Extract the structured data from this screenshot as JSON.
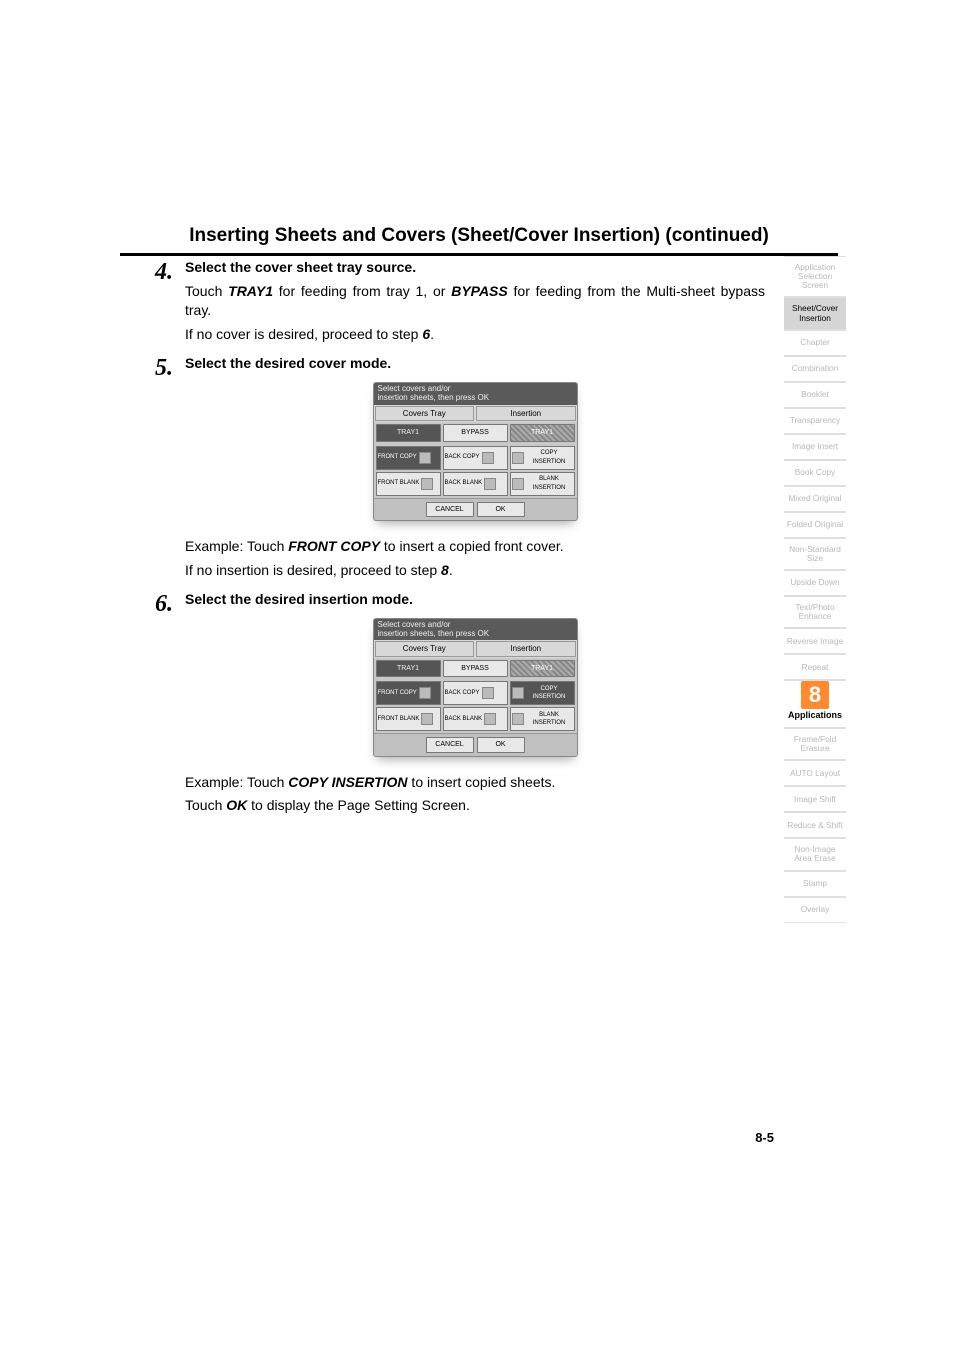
{
  "page_title": "Inserting Sheets and Covers (Sheet/Cover Insertion) (continued)",
  "steps": {
    "s4": {
      "num": "4.",
      "heading": "Select the cover sheet tray source.",
      "line1_a": "Touch ",
      "line1_b": "TRAY1",
      "line1_c": " for feeding from tray 1, or ",
      "line1_d": "BYPASS",
      "line1_e": " for feeding from the Multi-sheet bypass tray.",
      "line2_a": "If no cover is desired, proceed to step ",
      "line2_b": "6",
      "line2_c": "."
    },
    "s5": {
      "num": "5.",
      "heading": "Select the desired cover mode.",
      "ex_a": "Example: Touch ",
      "ex_b": "FRONT COPY",
      "ex_c": " to insert a copied front cover.",
      "after_a": "If no insertion is desired, proceed to step ",
      "after_b": "8",
      "after_c": "."
    },
    "s6": {
      "num": "6.",
      "heading": "Select the desired insertion mode.",
      "ex_a": "Example: Touch ",
      "ex_b": "COPY INSERTION",
      "ex_c": " to insert copied sheets.",
      "after_a": "Touch ",
      "after_b": "OK",
      "after_c": " to display the Page Setting Screen."
    }
  },
  "mock": {
    "head_line1": "Select covers and/or",
    "head_line2": "insertion sheets, then press OK",
    "sect_left": "Covers Tray",
    "sect_right": "Insertion",
    "top_tray1": "TRAY1",
    "top_bypass": "BYPASS",
    "top_tray1_right": "TRAY1",
    "front_copy": "FRONT COPY",
    "back_copy": "BACK COPY",
    "copy_ins": "COPY INSERTION",
    "front_blank": "FRONT BLANK",
    "back_blank": "BACK BLANK",
    "blank_ins": "BLANK INSERTION",
    "cancel": "CANCEL",
    "ok": "OK"
  },
  "sidebar": [
    {
      "label": "Application Selection Screen",
      "active": false
    },
    {
      "label": "Sheet/Cover Insertion",
      "active": true
    },
    {
      "label": "Chapter",
      "active": false
    },
    {
      "label": "Combination",
      "active": false
    },
    {
      "label": "Booklet",
      "active": false
    },
    {
      "label": "Transparency",
      "active": false
    },
    {
      "label": "Image Insert",
      "active": false
    },
    {
      "label": "Book Copy",
      "active": false
    },
    {
      "label": "Mixed Original",
      "active": false
    },
    {
      "label": "Folded Original",
      "active": false
    },
    {
      "label": "Non-Standard Size",
      "active": false
    },
    {
      "label": "Upside Down",
      "active": false
    },
    {
      "label": "Text/Photo Enhance",
      "active": false
    },
    {
      "label": "Reverse Image",
      "active": false
    },
    {
      "label": "Repeat",
      "active": false
    },
    {
      "label": "Applications",
      "active": false,
      "apps": true,
      "badge": "8"
    },
    {
      "label": "Frame/Fold Erasure",
      "active": false
    },
    {
      "label": "AUTO Layout",
      "active": false
    },
    {
      "label": "Image Shift",
      "active": false
    },
    {
      "label": "Reduce & Shift",
      "active": false
    },
    {
      "label": "Non-Image Area Erase",
      "active": false
    },
    {
      "label": "Stamp",
      "active": false
    },
    {
      "label": "Overlay",
      "active": false
    }
  ],
  "page_number": "8-5",
  "colors": {
    "text": "#000000",
    "muted": "#b8b8b8",
    "accent": "#ff8a30",
    "active_bg": "#d6d6d6"
  }
}
